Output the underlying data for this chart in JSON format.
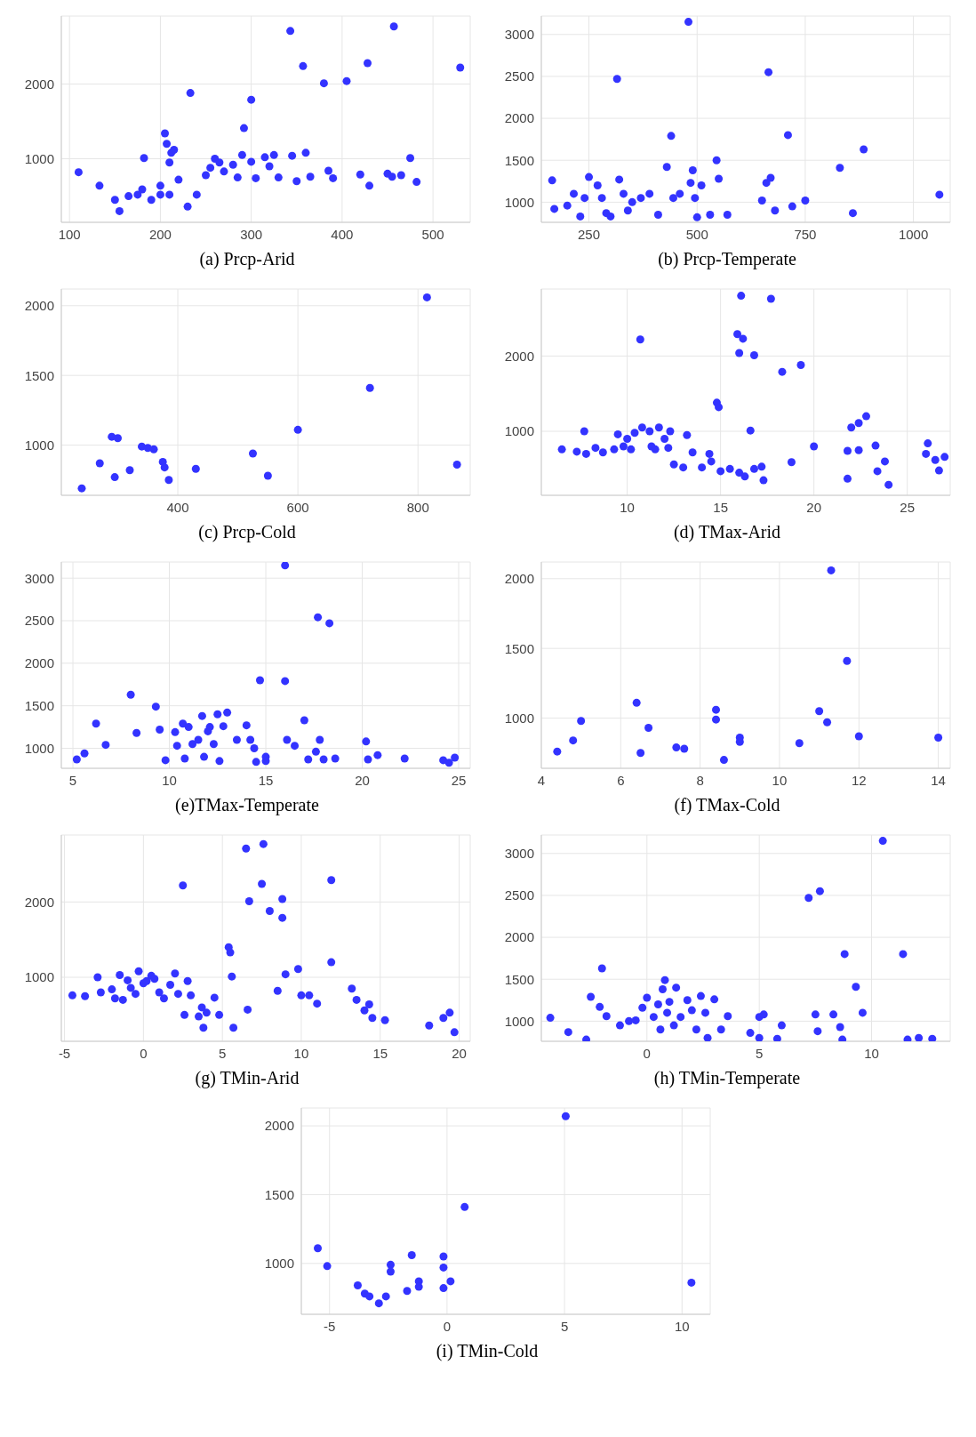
{
  "chart_data": [
    {
      "type": "scatter",
      "title": "(a)  Prcp-Arid",
      "xlim": [
        91,
        541
      ],
      "ylim": [
        150,
        2910
      ],
      "xticks": [
        100,
        200,
        300,
        400,
        500
      ],
      "yticks": [
        1000,
        2000
      ],
      "grid": true,
      "marker": "circle",
      "series": [
        {
          "color": "#3333ff",
          "x": [
            110,
            133,
            150,
            155,
            165,
            175,
            180,
            182,
            190,
            200,
            200,
            205,
            207,
            210,
            212,
            215,
            210,
            220,
            230,
            233,
            240,
            250,
            255,
            260,
            265,
            270,
            280,
            285,
            290,
            292,
            300,
            300,
            305,
            315,
            320,
            325,
            330,
            343,
            345,
            350,
            357,
            360,
            365,
            380,
            385,
            390,
            405,
            420,
            428,
            430,
            450,
            455,
            457,
            465,
            475,
            482,
            530
          ],
          "values": [
            820,
            640,
            450,
            300,
            500,
            520,
            590,
            1010,
            450,
            520,
            640,
            1340,
            1200,
            950,
            1080,
            1120,
            520,
            720,
            360,
            1880,
            520,
            780,
            880,
            1000,
            950,
            830,
            920,
            750,
            1050,
            1410,
            1790,
            960,
            740,
            1020,
            900,
            1050,
            750,
            2710,
            1040,
            700,
            2240,
            1080,
            760,
            2010,
            840,
            740,
            2040,
            790,
            2280,
            640,
            800,
            760,
            2770,
            780,
            1010,
            690,
            2220
          ]
        }
      ]
    },
    {
      "type": "scatter",
      "title": "(b)  Prcp-Temperate",
      "xlim": [
        140,
        1085
      ],
      "ylim": [
        760,
        3220
      ],
      "xticks": [
        250,
        500,
        750,
        1000
      ],
      "yticks": [
        1000,
        1500,
        2000,
        2500,
        3000
      ],
      "grid": true,
      "marker": "circle",
      "series": [
        {
          "color": "#3333ff",
          "x": [
            165,
            170,
            200,
            215,
            230,
            240,
            250,
            270,
            280,
            290,
            300,
            315,
            320,
            330,
            340,
            350,
            370,
            390,
            410,
            430,
            440,
            445,
            460,
            480,
            485,
            490,
            495,
            500,
            510,
            530,
            545,
            550,
            570,
            650,
            660,
            665,
            670,
            680,
            710,
            720,
            750,
            830,
            860,
            885,
            1060
          ],
          "values": [
            1260,
            920,
            960,
            1100,
            830,
            1050,
            1300,
            1200,
            1050,
            870,
            830,
            2470,
            1270,
            1100,
            900,
            1000,
            1050,
            1100,
            850,
            1420,
            1790,
            1050,
            1100,
            3150,
            1230,
            1380,
            1050,
            820,
            1200,
            850,
            1500,
            1280,
            850,
            1020,
            1230,
            2550,
            1290,
            900,
            1800,
            950,
            1020,
            1410,
            870,
            1630,
            1090
          ]
        }
      ]
    },
    {
      "type": "scatter",
      "title": "(c)  Prcp-Cold",
      "xlim": [
        206,
        887
      ],
      "ylim": [
        640,
        2120
      ],
      "xticks": [
        400,
        600,
        800
      ],
      "yticks": [
        1000,
        1500,
        2000
      ],
      "grid": true,
      "marker": "circle",
      "series": [
        {
          "color": "#3333ff",
          "x": [
            240,
            270,
            290,
            295,
            300,
            320,
            340,
            350,
            360,
            375,
            378,
            385,
            430,
            525,
            550,
            600,
            720,
            815,
            865
          ],
          "values": [
            690,
            870,
            1060,
            770,
            1050,
            820,
            990,
            980,
            970,
            880,
            840,
            750,
            830,
            940,
            780,
            1110,
            1410,
            2060,
            860
          ]
        }
      ]
    },
    {
      "type": "scatter",
      "title": "(d)  TMax-Arid",
      "xlim": [
        5.4,
        27.3
      ],
      "ylim": [
        150,
        2890
      ],
      "xticks": [
        10,
        15,
        20,
        25
      ],
      "yticks": [
        1000,
        2000
      ],
      "grid": true,
      "marker": "circle",
      "series": [
        {
          "color": "#3333ff",
          "x": [
            6.5,
            7.3,
            7.7,
            7.8,
            8.3,
            8.7,
            9.3,
            9.5,
            9.8,
            10.0,
            10.2,
            10.4,
            10.7,
            10.8,
            11.2,
            11.3,
            11.5,
            11.7,
            12.0,
            12.2,
            12.3,
            12.5,
            13.0,
            13.2,
            13.5,
            14.0,
            14.4,
            14.5,
            14.8,
            14.9,
            15.0,
            15.5,
            15.9,
            16.0,
            16.1,
            16.2,
            16.0,
            16.3,
            16.6,
            16.8,
            16.8,
            17.2,
            17.3,
            17.7,
            18.3,
            18.8,
            19.3,
            20.0,
            21.8,
            21.8,
            22.0,
            22.4,
            22.4,
            22.8,
            23.3,
            23.4,
            23.8,
            24.0,
            26.0,
            26.1,
            26.5,
            26.7,
            27.0
          ],
          "values": [
            760,
            730,
            1000,
            700,
            780,
            720,
            760,
            960,
            800,
            900,
            760,
            980,
            2220,
            1050,
            1000,
            800,
            760,
            1050,
            900,
            780,
            1000,
            560,
            520,
            950,
            720,
            520,
            700,
            600,
            1380,
            1320,
            470,
            500,
            2290,
            2040,
            2800,
            2230,
            450,
            400,
            1010,
            2010,
            500,
            530,
            350,
            2760,
            1790,
            590,
            1880,
            800,
            740,
            370,
            1050,
            1110,
            750,
            1200,
            810,
            470,
            600,
            290,
            700,
            840,
            620,
            480,
            660
          ]
        }
      ]
    },
    {
      "type": "scatter",
      "title": "(e)TMax-Temperate",
      "xlim": [
        4.4,
        25.6
      ],
      "ylim": [
        765,
        3190
      ],
      "xticks": [
        5,
        10,
        15,
        20,
        25
      ],
      "yticks": [
        1000,
        1500,
        2000,
        2500,
        3000
      ],
      "grid": true,
      "marker": "circle",
      "series": [
        {
          "color": "#3333ff",
          "x": [
            5.2,
            5.6,
            6.2,
            6.7,
            8.0,
            8.3,
            9.3,
            9.5,
            9.8,
            10.3,
            10.4,
            10.7,
            10.8,
            11.0,
            11.2,
            11.5,
            11.7,
            11.8,
            12.0,
            12.1,
            12.3,
            12.5,
            12.6,
            12.8,
            13.0,
            13.5,
            14.0,
            14.2,
            14.4,
            14.5,
            14.7,
            15.0,
            15.0,
            16.0,
            16.0,
            16.1,
            16.5,
            17.0,
            17.2,
            17.6,
            17.7,
            17.8,
            18.0,
            18.3,
            18.6,
            20.2,
            20.3,
            20.8,
            22.2,
            24.2,
            24.5,
            24.8
          ],
          "values": [
            870,
            940,
            1290,
            1040,
            1630,
            1180,
            1490,
            1220,
            860,
            1190,
            1030,
            1290,
            880,
            1250,
            1050,
            1100,
            1380,
            900,
            1200,
            1250,
            1050,
            1400,
            850,
            1260,
            1420,
            1100,
            1270,
            1100,
            1000,
            840,
            1800,
            850,
            900,
            3150,
            1790,
            1100,
            1030,
            1330,
            870,
            960,
            2540,
            1100,
            870,
            2470,
            880,
            1080,
            870,
            920,
            880,
            860,
            830,
            890
          ]
        }
      ]
    },
    {
      "type": "scatter",
      "title": "(f)  TMax-Cold",
      "xlim": [
        4,
        14.3
      ],
      "ylim": [
        640,
        2120
      ],
      "xticks": [
        4,
        6,
        8,
        10,
        12,
        14
      ],
      "yticks": [
        1000,
        1500,
        2000
      ],
      "grid": true,
      "marker": "circle",
      "series": [
        {
          "color": "#3333ff",
          "x": [
            4.4,
            4.8,
            5.0,
            6.4,
            6.5,
            6.7,
            7.4,
            7.6,
            8.4,
            8.4,
            8.6,
            9.0,
            9.0,
            10.5,
            11.0,
            11.2,
            11.3,
            11.7,
            12.0,
            14.0
          ],
          "values": [
            760,
            840,
            980,
            1110,
            750,
            930,
            790,
            780,
            1060,
            990,
            700,
            860,
            830,
            820,
            1050,
            970,
            2060,
            1410,
            870,
            860
          ]
        }
      ]
    },
    {
      "type": "scatter",
      "title": "(g)  TMin-Arid",
      "xlim": [
        -5.2,
        20.7
      ],
      "ylim": [
        150,
        2890
      ],
      "xticks": [
        -5,
        0,
        5,
        10,
        15,
        20
      ],
      "yticks": [
        1000,
        2000
      ],
      "grid": true,
      "marker": "circle",
      "series": [
        {
          "color": "#3333ff",
          "x": [
            -4.5,
            -3.7,
            -2.9,
            -2.7,
            -2.0,
            -1.8,
            -1.5,
            -1.3,
            -1.0,
            -0.8,
            -0.5,
            -0.3,
            0.0,
            0.2,
            0.5,
            0.7,
            1.0,
            1.3,
            1.7,
            2.0,
            2.2,
            2.5,
            2.6,
            2.8,
            3.0,
            3.5,
            3.7,
            3.8,
            4.0,
            4.5,
            4.8,
            5.4,
            5.5,
            5.6,
            5.7,
            6.5,
            6.6,
            6.7,
            7.5,
            7.6,
            8.0,
            8.5,
            8.8,
            8.8,
            9.0,
            9.8,
            10.0,
            10.5,
            11.0,
            11.9,
            11.9,
            13.2,
            13.5,
            14.0,
            14.3,
            14.5,
            15.3,
            18.1,
            19.0,
            19.4,
            19.7
          ],
          "values": [
            760,
            750,
            1000,
            800,
            840,
            720,
            1030,
            700,
            960,
            860,
            780,
            1080,
            920,
            950,
            1020,
            980,
            800,
            720,
            900,
            1050,
            780,
            2220,
            500,
            950,
            760,
            480,
            600,
            330,
            530,
            730,
            500,
            1400,
            1330,
            1010,
            330,
            2710,
            570,
            2010,
            2240,
            2770,
            1880,
            820,
            2040,
            1790,
            1040,
            1110,
            760,
            760,
            650,
            2290,
            1200,
            850,
            700,
            560,
            640,
            460,
            430,
            360,
            460,
            530,
            270
          ]
        }
      ]
    },
    {
      "type": "scatter",
      "title": "(h)  TMin-Temperate",
      "xlim": [
        -4.7,
        13.5
      ],
      "ylim": [
        760,
        3220
      ],
      "xticks": [
        0,
        5,
        10
      ],
      "yticks": [
        1000,
        1500,
        2000,
        2500,
        3000
      ],
      "grid": true,
      "marker": "circle",
      "series": [
        {
          "color": "#3333ff",
          "x": [
            -4.3,
            -3.5,
            -2.7,
            -2.5,
            -2.0,
            -2.1,
            -1.8,
            -1.2,
            -0.8,
            -0.5,
            -0.2,
            0.0,
            0.3,
            0.5,
            0.6,
            0.7,
            0.8,
            0.9,
            1.0,
            1.2,
            1.3,
            1.5,
            1.8,
            2.0,
            2.2,
            2.4,
            2.6,
            2.7,
            3.0,
            3.3,
            3.6,
            4.6,
            5.0,
            5.2,
            5.0,
            5.8,
            6.0,
            7.2,
            7.5,
            7.6,
            7.7,
            8.3,
            8.6,
            8.8,
            8.7,
            9.3,
            9.6,
            10.5,
            11.4,
            11.6,
            12.1,
            12.7
          ],
          "values": [
            1040,
            870,
            780,
            1290,
            1630,
            1170,
            1060,
            950,
            1000,
            1010,
            1160,
            1280,
            1050,
            1200,
            900,
            1380,
            1490,
            1100,
            1230,
            950,
            1400,
            1050,
            1250,
            1130,
            900,
            1300,
            1100,
            800,
            1260,
            900,
            1060,
            860,
            1050,
            1080,
            800,
            790,
            950,
            2470,
            1080,
            880,
            2550,
            1080,
            930,
            1800,
            780,
            1410,
            1100,
            3150,
            1800,
            780,
            800,
            790
          ]
        }
      ]
    },
    {
      "type": "scatter",
      "title": "(i) TMin-Cold",
      "xlim": [
        -6.2,
        11.2
      ],
      "ylim": [
        630,
        2130
      ],
      "xticks": [
        -5,
        0,
        5,
        10
      ],
      "yticks": [
        1000,
        1500,
        2000
      ],
      "grid": true,
      "marker": "circle",
      "series": [
        {
          "color": "#3333ff",
          "x": [
            -5.5,
            -5.1,
            -3.8,
            -3.5,
            -3.3,
            -2.9,
            -2.6,
            -2.4,
            -2.4,
            -1.7,
            -1.5,
            -1.2,
            -1.2,
            -0.15,
            -0.15,
            -0.15,
            0.15,
            0.75,
            5.05,
            10.4
          ],
          "values": [
            1110,
            980,
            840,
            780,
            760,
            710,
            760,
            990,
            940,
            800,
            1060,
            870,
            830,
            1050,
            970,
            820,
            870,
            1410,
            2070,
            860
          ]
        }
      ]
    }
  ]
}
